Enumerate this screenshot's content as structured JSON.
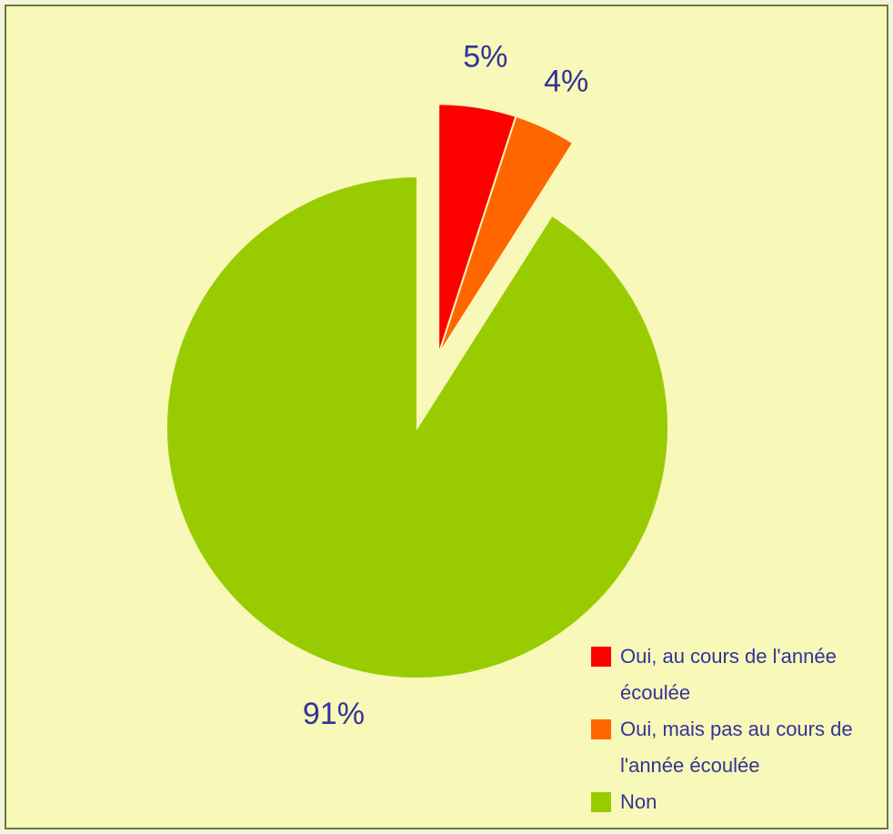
{
  "chart_data": {
    "type": "pie",
    "categories": [
      "Oui, au cours de l'année écoulée",
      "Oui, mais pas au cours de l'année écoulée",
      "Non"
    ],
    "values": [
      5,
      4,
      91
    ],
    "value_labels": [
      "5%",
      "4%",
      "91%"
    ],
    "colors": [
      "#ff0000",
      "#ff6600",
      "#99cc00"
    ],
    "legend": "bottom-right"
  }
}
